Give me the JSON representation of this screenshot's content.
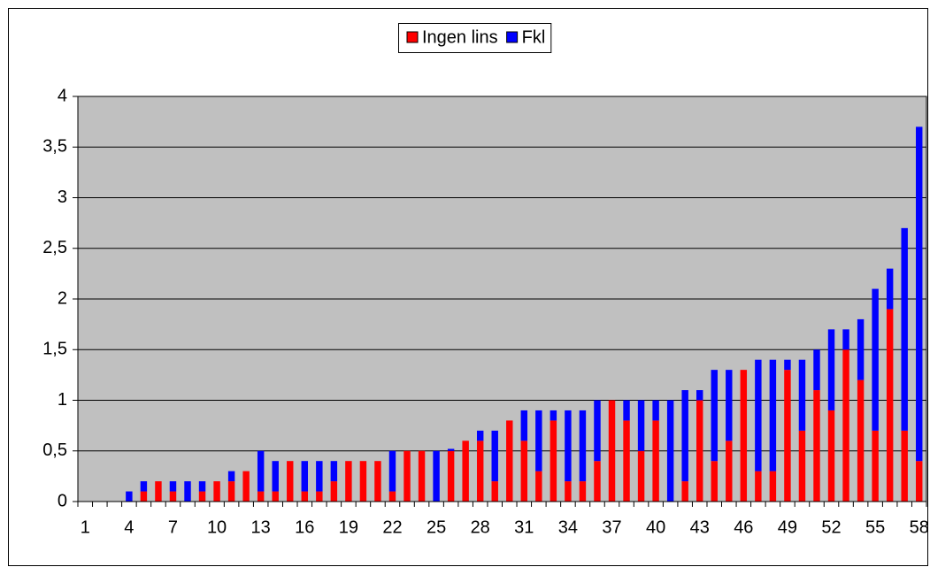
{
  "chart_data": {
    "type": "stacked-bar",
    "categories": [
      "1",
      null,
      null,
      "4",
      null,
      null,
      "7",
      null,
      null,
      "10",
      null,
      null,
      "13",
      null,
      null,
      "16",
      null,
      null,
      "19",
      null,
      null,
      "22",
      null,
      null,
      "25",
      null,
      null,
      "28",
      null,
      null,
      "31",
      null,
      null,
      "34",
      null,
      null,
      "37",
      null,
      null,
      "40",
      null,
      null,
      "43",
      null,
      null,
      "46",
      null,
      null,
      "49",
      null,
      null,
      "52",
      null,
      null,
      "55",
      null,
      null,
      "58"
    ],
    "series": [
      {
        "name": "Ingen lins",
        "color": "#ff0000",
        "values": [
          0,
          0,
          0,
          0,
          0.1,
          0.2,
          0.1,
          0,
          0.1,
          0.2,
          0.2,
          0.3,
          0.1,
          0.1,
          0.4,
          0.1,
          0.1,
          0.2,
          0.4,
          0.4,
          0.4,
          0.1,
          0.5,
          0.5,
          0,
          0.5,
          0.6,
          0.6,
          0.2,
          0.8,
          0.6,
          0.3,
          0.8,
          0.2,
          0.2,
          0.4,
          1.0,
          0.8,
          0.5,
          0.8,
          0,
          0.2,
          1.0,
          0.4,
          0.6,
          1.3,
          0.3,
          0.3,
          1.3,
          0.7,
          1.1,
          0.9,
          1.5,
          1.2,
          0.7,
          1.9,
          0.7,
          0.4
        ]
      },
      {
        "name": "Fkl",
        "color": "#0000ff",
        "values": [
          0,
          0,
          0,
          0.1,
          0.1,
          0,
          0.1,
          0.2,
          0.1,
          0,
          0.1,
          0,
          0.4,
          0.3,
          0,
          0.3,
          0.3,
          0.2,
          0,
          0,
          0,
          0.4,
          0,
          0,
          0.5,
          0.02,
          0,
          0.1,
          0.5,
          0,
          0.3,
          0.6,
          0.1,
          0.7,
          0.7,
          0.6,
          0,
          0.2,
          0.5,
          0.2,
          1.0,
          0.9,
          0.1,
          0.9,
          0.7,
          0,
          1.1,
          1.1,
          0.1,
          0.7,
          0.4,
          0.8,
          0.2,
          0.6,
          1.4,
          0.4,
          2.0,
          3.3
        ]
      }
    ],
    "ylim": [
      0,
      4
    ],
    "yticks": [
      0,
      {
        "value": 0.5,
        "label": "0,5"
      },
      1,
      {
        "value": 1.5,
        "label": "1,5"
      },
      2,
      {
        "value": 2.5,
        "label": "2,5"
      },
      3,
      {
        "value": 3.5,
        "label": "3,5"
      },
      4
    ],
    "grid": true,
    "legend": "top"
  }
}
